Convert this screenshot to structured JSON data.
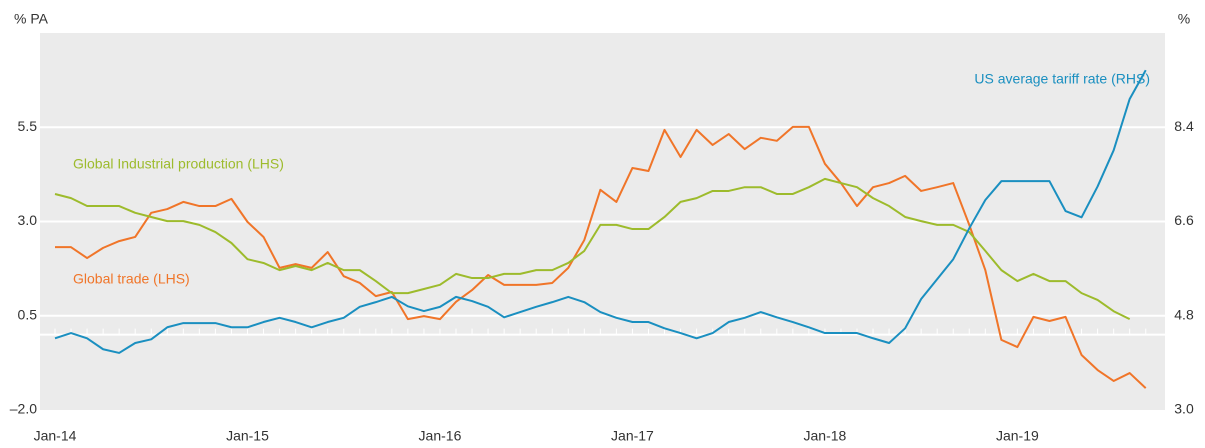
{
  "chart_data": {
    "type": "line",
    "ylabel": "% PA",
    "y2label": "%",
    "categories": [
      "Jan-14",
      null,
      null,
      null,
      null,
      null,
      null,
      null,
      null,
      null,
      null,
      null,
      "Jan-15",
      null,
      null,
      null,
      null,
      null,
      null,
      null,
      null,
      null,
      null,
      null,
      "Jan-16",
      null,
      null,
      null,
      null,
      null,
      null,
      null,
      null,
      null,
      null,
      null,
      "Jan-17",
      null,
      null,
      null,
      null,
      null,
      null,
      null,
      null,
      null,
      null,
      null,
      "Jan-18",
      null,
      null,
      null,
      null,
      null,
      null,
      null,
      null,
      null,
      null,
      null,
      "Jan-19",
      null,
      null,
      null,
      null,
      null,
      null,
      null,
      null
    ],
    "ylim": [
      -2.0,
      8.0
    ],
    "yticks": [
      {
        "value": -2.0,
        "label": "–2.0"
      },
      0.5,
      {
        "value": 3.0,
        "label": "3.0"
      },
      5.5
    ],
    "y2lim": [
      3.0,
      10.2
    ],
    "y2ticks": [
      {
        "value": 3.0,
        "label": "3.0"
      },
      4.8,
      6.6,
      8.4
    ],
    "grid": true,
    "series": [
      {
        "name": "Global trade (LHS)",
        "color": "#f07529",
        "values": [
          2.32,
          2.32,
          2.03,
          2.3,
          2.48,
          2.59,
          3.23,
          3.33,
          3.52,
          3.41,
          3.41,
          3.6,
          2.99,
          2.59,
          1.77,
          1.87,
          1.77,
          2.19,
          1.55,
          1.37,
          1.02,
          1.13,
          0.41,
          0.49,
          0.41,
          0.87,
          1.18,
          1.58,
          1.32,
          1.32,
          1.32,
          1.37,
          1.77,
          2.51,
          3.84,
          3.52,
          4.42,
          4.34,
          5.43,
          4.71,
          5.43,
          5.03,
          5.32,
          4.92,
          5.22,
          5.14,
          5.51,
          5.51,
          4.53,
          4.02,
          3.41,
          3.91,
          4.02,
          4.21,
          3.81,
          3.91,
          4.02,
          2.91,
          1.71,
          -0.14,
          -0.33,
          0.47,
          0.36,
          0.47,
          -0.54,
          -0.94,
          -1.23,
          -1.02,
          -1.42
        ]
      },
      {
        "name": "Global Industrial production (LHS)",
        "color": "#9dbb2c",
        "values": [
          3.73,
          3.62,
          3.41,
          3.41,
          3.41,
          3.23,
          3.12,
          3.01,
          3.01,
          2.91,
          2.72,
          2.43,
          2.0,
          1.9,
          1.71,
          1.82,
          1.71,
          1.9,
          1.71,
          1.71,
          1.42,
          1.1,
          1.1,
          1.21,
          1.32,
          1.61,
          1.5,
          1.5,
          1.61,
          1.61,
          1.71,
          1.71,
          1.9,
          2.22,
          2.91,
          2.91,
          2.8,
          2.8,
          3.12,
          3.52,
          3.62,
          3.81,
          3.81,
          3.91,
          3.91,
          3.73,
          3.73,
          3.91,
          4.13,
          4.02,
          3.91,
          3.62,
          3.41,
          3.12,
          3.01,
          2.91,
          2.91,
          2.72,
          2.22,
          1.71,
          1.42,
          1.61,
          1.42,
          1.42,
          1.1,
          0.92,
          0.62,
          0.41,
          null
        ]
      },
      {
        "name": "US average tariff rate (RHS)",
        "color": "#1a8fc0",
        "axis": "y2",
        "values": [
          4.37,
          4.47,
          4.37,
          4.16,
          4.09,
          4.28,
          4.35,
          4.58,
          4.66,
          4.66,
          4.66,
          4.58,
          4.58,
          4.68,
          4.76,
          4.68,
          4.58,
          4.68,
          4.76,
          4.97,
          5.06,
          5.16,
          4.98,
          4.89,
          4.97,
          5.16,
          5.08,
          4.97,
          4.77,
          4.87,
          4.97,
          5.06,
          5.16,
          5.06,
          4.87,
          4.76,
          4.68,
          4.68,
          4.56,
          4.47,
          4.37,
          4.47,
          4.68,
          4.76,
          4.87,
          4.77,
          4.68,
          4.58,
          4.47,
          4.47,
          4.47,
          4.37,
          4.28,
          4.56,
          5.12,
          5.5,
          5.88,
          6.47,
          7.01,
          7.37,
          7.37,
          7.37,
          7.37,
          6.8,
          6.68,
          7.27,
          7.96,
          8.94,
          9.49
        ]
      }
    ]
  }
}
